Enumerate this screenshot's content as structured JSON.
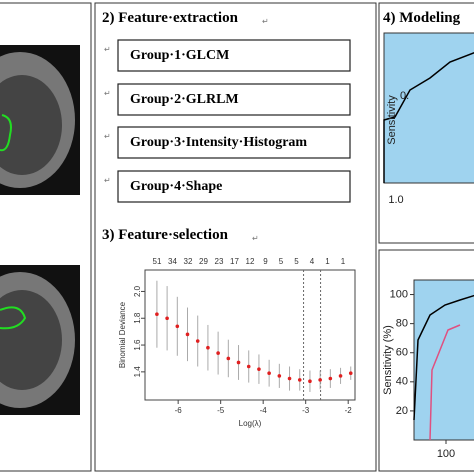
{
  "para_mark": "↵",
  "extraction": {
    "title": "2) Feature·extraction",
    "groups": [
      "Group·1·GLCM",
      "Group·2·GLRLM",
      "Group·3·Intensity·Histogram",
      "Group·4·Shape"
    ]
  },
  "selection": {
    "title": "3) Feature·selection",
    "chart_data": {
      "type": "scatter",
      "x_label": "Log(λ)",
      "y_label": "Binomial Deviance",
      "top_labels": [
        "51",
        "34",
        "32",
        "29",
        "23",
        "17",
        "12",
        "9",
        "5",
        "5",
        "4",
        "1",
        "1"
      ],
      "x": [
        -6.5,
        -6.26,
        -6.02,
        -5.78,
        -5.54,
        -5.3,
        -5.06,
        -4.82,
        -4.58,
        -4.34,
        -4.1,
        -3.86,
        -3.62,
        -3.38,
        -3.14,
        -2.9,
        -2.66,
        -2.42,
        -2.18,
        -1.94
      ],
      "values": [
        1.83,
        1.8,
        1.74,
        1.68,
        1.63,
        1.58,
        1.54,
        1.5,
        1.47,
        1.44,
        1.42,
        1.39,
        1.37,
        1.35,
        1.34,
        1.33,
        1.34,
        1.35,
        1.37,
        1.39
      ],
      "errors": [
        0.25,
        0.24,
        0.22,
        0.2,
        0.19,
        0.17,
        0.16,
        0.14,
        0.13,
        0.12,
        0.11,
        0.1,
        0.09,
        0.09,
        0.08,
        0.08,
        0.07,
        0.07,
        0.06,
        0.05
      ],
      "color": "#e02020",
      "error_color": "#aaaaaa",
      "vlines": [
        -3.05,
        -2.65
      ],
      "xlim": [
        -6.78,
        -1.84
      ],
      "ylim": [
        1.19,
        2.16
      ],
      "xticks": [
        -6,
        -5,
        -4,
        -3,
        -2
      ],
      "yticks": [
        1.4,
        1.6,
        1.8,
        {
          "value": 2,
          "label": "2.0"
        }
      ]
    }
  },
  "modeling": {
    "title": "4) Modeling",
    "roc_top": {
      "y_label": "Sensitivity",
      "annotation": "0.",
      "x_tick": "1.0"
    },
    "roc_bottom": {
      "y_label": "Sensitivity (%)",
      "yticks": [
        100,
        80,
        60,
        40,
        20
      ],
      "xticks": [
        100
      ]
    }
  }
}
